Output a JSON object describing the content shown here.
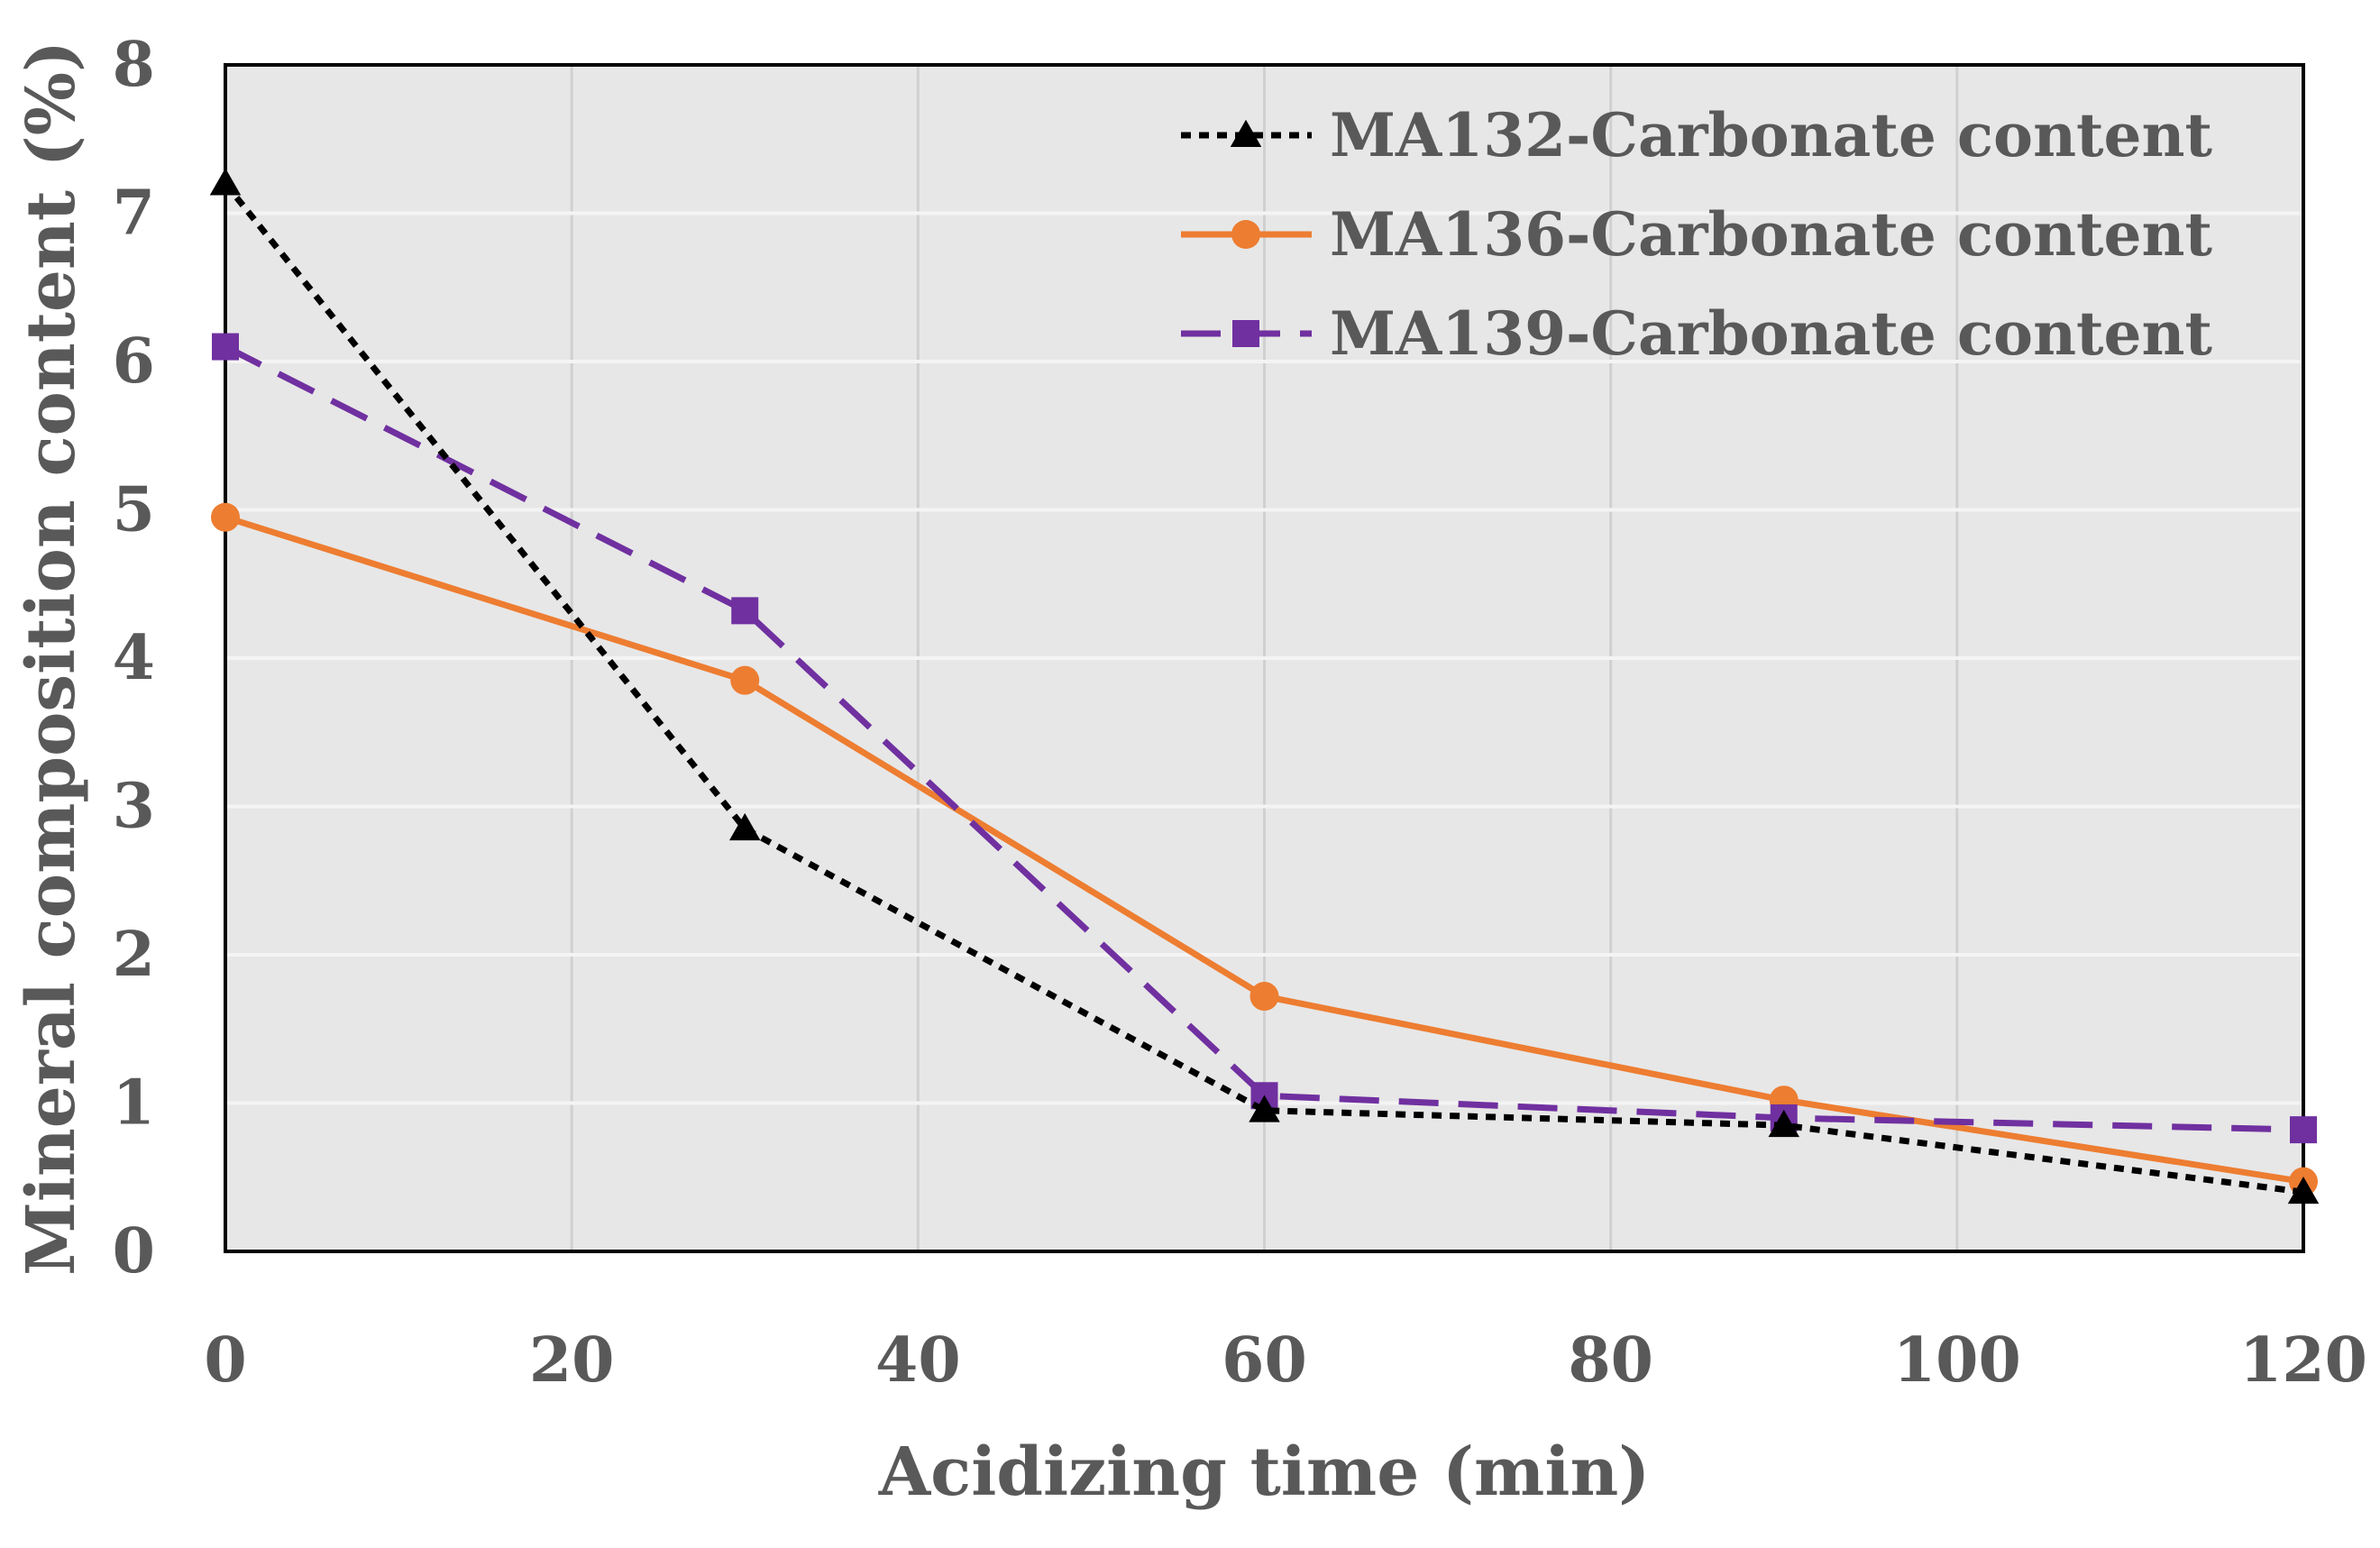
{
  "chart_data": {
    "type": "line",
    "title": "",
    "xlabel": "Acidizing time (min)",
    "ylabel": "Mineral composition content (%)",
    "xlim": [
      0,
      120
    ],
    "ylim": [
      0,
      8
    ],
    "xticks": [
      0,
      20,
      40,
      60,
      80,
      100,
      120
    ],
    "yticks": [
      0,
      1,
      2,
      3,
      4,
      5,
      6,
      7,
      8
    ],
    "grid": true,
    "legend_position": "top-right",
    "plot_background": "#e7e7e7",
    "series": [
      {
        "name": "MA132-Carbonate content",
        "color": "#000000",
        "line_style": "dotted",
        "marker": "triangle",
        "x": [
          0,
          30,
          60,
          90,
          120
        ],
        "y": [
          7.2,
          2.85,
          0.95,
          0.85,
          0.4
        ]
      },
      {
        "name": "MA136-Carbonate content",
        "color": "#ED7D31",
        "line_style": "solid",
        "marker": "circle",
        "x": [
          0,
          30,
          60,
          90,
          120
        ],
        "y": [
          4.95,
          3.85,
          1.72,
          1.02,
          0.47
        ]
      },
      {
        "name": "MA139-Carbonate content",
        "color": "#7030A0",
        "line_style": "dashed",
        "marker": "square",
        "x": [
          0,
          30,
          60,
          90,
          120
        ],
        "y": [
          6.1,
          4.32,
          1.05,
          0.9,
          0.82
        ]
      }
    ]
  }
}
